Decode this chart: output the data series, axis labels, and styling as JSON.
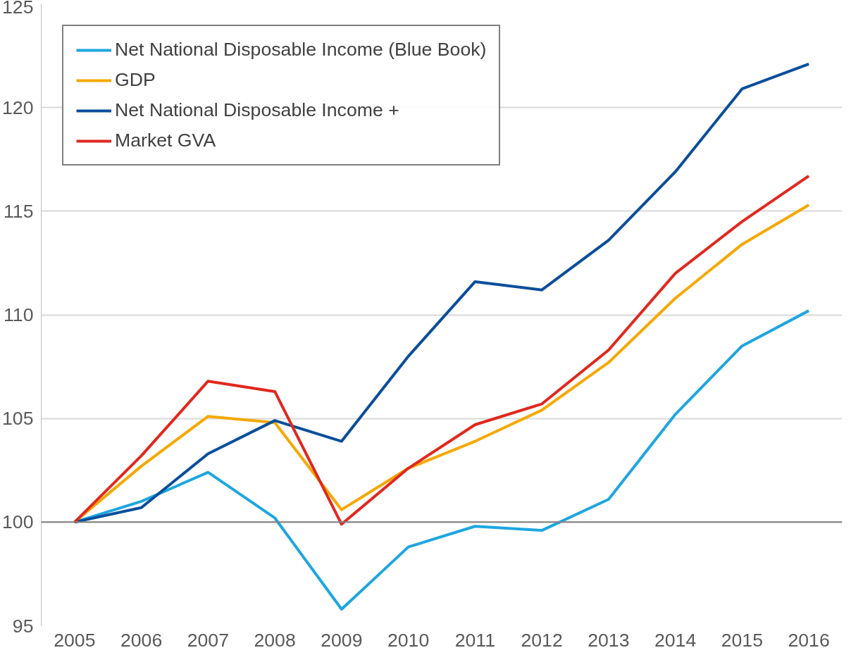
{
  "chart_data": {
    "type": "line",
    "categories": [
      "2005",
      "2006",
      "2007",
      "2008",
      "2009",
      "2010",
      "2011",
      "2012",
      "2013",
      "2014",
      "2015",
      "2016"
    ],
    "series": [
      {
        "name": "Net National Disposable Income (Blue Book)",
        "color": "#1ea6e0",
        "values": [
          100,
          101.0,
          102.4,
          100.2,
          95.8,
          98.8,
          99.8,
          99.6,
          101.1,
          105.2,
          108.5,
          110.2
        ]
      },
      {
        "name": "GDP",
        "color": "#f5a800",
        "values": [
          100,
          102.7,
          105.1,
          104.8,
          100.6,
          102.6,
          103.9,
          105.4,
          107.7,
          110.8,
          113.4,
          115.3
        ]
      },
      {
        "name": "Net National Disposable Income +",
        "color": "#0a4e9b",
        "values": [
          100,
          100.7,
          103.3,
          104.9,
          103.9,
          108.0,
          111.6,
          111.2,
          113.6,
          116.9,
          120.9,
          122.1
        ]
      },
      {
        "name": "Market GVA",
        "color": "#e0281e",
        "values": [
          100,
          103.2,
          106.8,
          106.3,
          99.9,
          102.6,
          104.7,
          105.7,
          108.3,
          112.0,
          114.5,
          116.7
        ]
      }
    ],
    "ylim": [
      95,
      125
    ],
    "yticks": [
      95,
      100,
      105,
      110,
      115,
      120,
      125
    ],
    "grid": "y",
    "legend": "top left",
    "ref_lines": [
      {
        "axis": "y",
        "value": 100,
        "color": "#808080"
      }
    ]
  }
}
